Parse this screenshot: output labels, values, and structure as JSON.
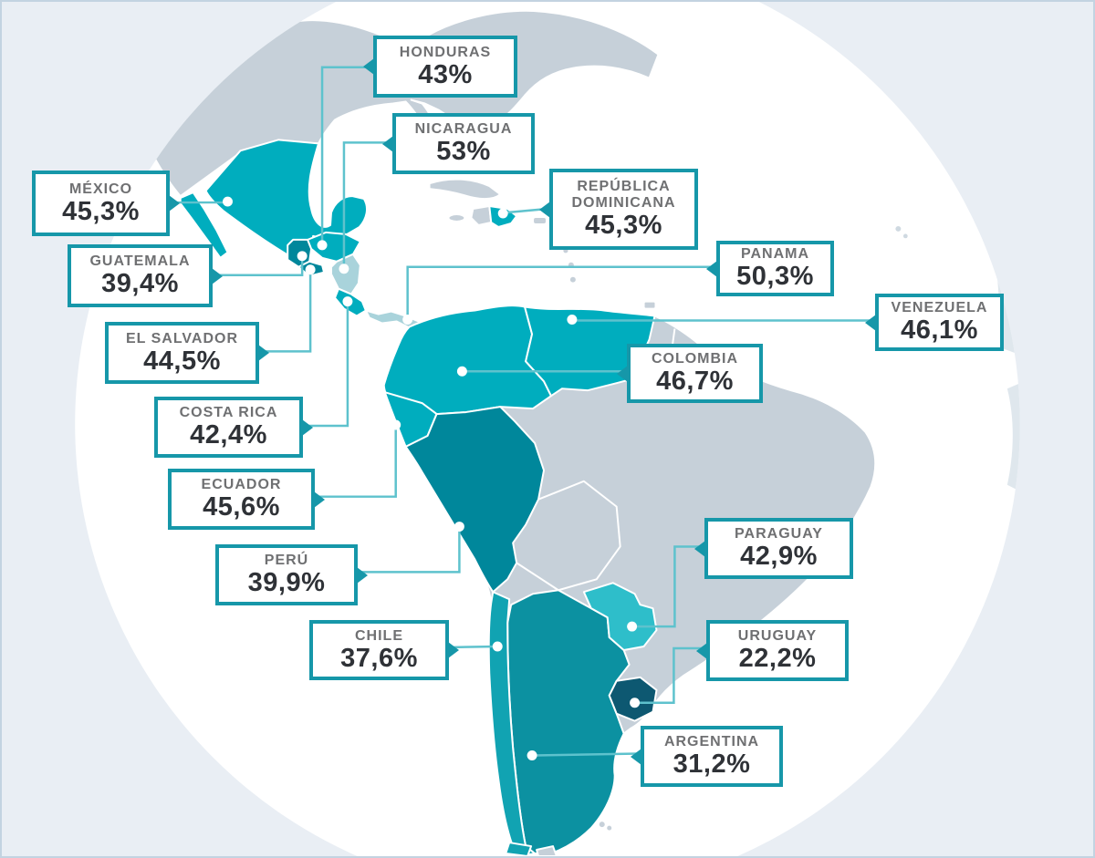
{
  "palette": {
    "background": "#e9eef4",
    "globe": "#ffffff",
    "land_gray": "#c6d0d9",
    "land_faint": "#dfe7ed",
    "teal_medium": "#00adbe",
    "teal_dark": "#00879b",
    "teal_pale": "#a9d3db",
    "teal_chile": "#11a3b2",
    "teal_argentina": "#0c91a1",
    "teal_paraguay": "#2ebeca",
    "uruguay_dark": "#0d5871",
    "box_border": "#1697a9",
    "leader_line": "#5ec2cd",
    "dot_fill": "#ffffff",
    "label_name_color": "#6f7072",
    "label_value_color": "#2f3237"
  },
  "countries": [
    {
      "id": "honduras",
      "name": "HONDURAS",
      "value": "43%"
    },
    {
      "id": "nicaragua",
      "name": "NICARAGUA",
      "value": "53%"
    },
    {
      "id": "mexico",
      "name": "MÉXICO",
      "value": "45,3%"
    },
    {
      "id": "republica-dominicana",
      "name": "REPÚBLICA DOMINICANA",
      "value": "45,3%"
    },
    {
      "id": "guatemala",
      "name": "GUATEMALA",
      "value": "39,4%"
    },
    {
      "id": "panama",
      "name": "PANAMA",
      "value": "50,3%"
    },
    {
      "id": "el-salvador",
      "name": "EL SALVADOR",
      "value": "44,5%"
    },
    {
      "id": "venezuela",
      "name": "VENEZUELA",
      "value": "46,1%"
    },
    {
      "id": "costa-rica",
      "name": "COSTA RICA",
      "value": "42,4%"
    },
    {
      "id": "colombia",
      "name": "COLOMBIA",
      "value": "46,7%"
    },
    {
      "id": "ecuador",
      "name": "ECUADOR",
      "value": "45,6%"
    },
    {
      "id": "peru",
      "name": "PERÚ",
      "value": "39,9%"
    },
    {
      "id": "paraguay",
      "name": "PARAGUAY",
      "value": "42,9%"
    },
    {
      "id": "chile",
      "name": "CHILE",
      "value": "37,6%"
    },
    {
      "id": "uruguay",
      "name": "URUGUAY",
      "value": "22,2%"
    },
    {
      "id": "argentina",
      "name": "ARGENTINA",
      "value": "31,2%"
    }
  ]
}
